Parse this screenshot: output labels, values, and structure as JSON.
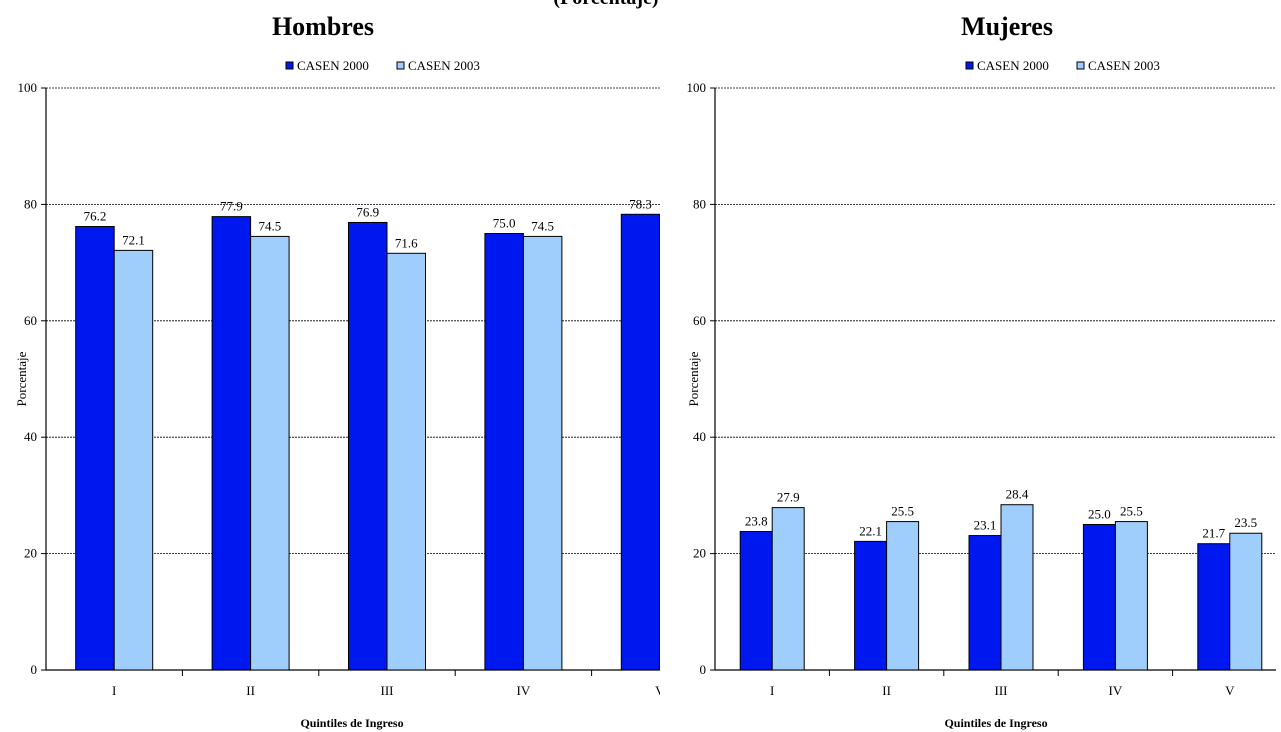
{
  "top_fragment": "(Porcentaje)",
  "chart_data": [
    {
      "type": "bar",
      "title": "Hombres",
      "xlabel": "Quintiles de Ingreso",
      "ylabel": "Porcentaje",
      "ylim": [
        0,
        100
      ],
      "yticks": [
        0,
        20,
        40,
        60,
        80,
        100
      ],
      "categories": [
        "I",
        "II",
        "III",
        "IV",
        "V"
      ],
      "series": [
        {
          "name": "CASEN 2000",
          "values": [
            76.2,
            77.9,
            76.9,
            75.0,
            78.3
          ],
          "labels": [
            "76.2",
            "77.9",
            "76.9",
            "75.0",
            "78.3"
          ],
          "color": "#0018f0"
        },
        {
          "name": "CASEN 2003",
          "values": [
            72.1,
            74.5,
            71.6,
            74.5,
            null
          ],
          "labels": [
            "72.1",
            "74.5",
            "71.6",
            "74.5",
            ""
          ],
          "color": "#9fcdfc"
        }
      ],
      "grid": true,
      "legend": "top-center",
      "cropped_right": true
    },
    {
      "type": "bar",
      "title": "Mujeres",
      "xlabel": "Quintiles de Ingreso",
      "ylabel": "Porcentaje",
      "ylim": [
        0,
        100
      ],
      "yticks": [
        0,
        20,
        40,
        60,
        80,
        100
      ],
      "categories": [
        "I",
        "II",
        "III",
        "IV",
        "V"
      ],
      "series": [
        {
          "name": "CASEN 2000",
          "values": [
            23.8,
            22.1,
            23.1,
            25.0,
            21.7
          ],
          "labels": [
            "23.8",
            "22.1",
            "23.1",
            "25.0",
            "21.7"
          ],
          "color": "#0018f0"
        },
        {
          "name": "CASEN 2003",
          "values": [
            27.9,
            25.5,
            28.4,
            25.5,
            23.5
          ],
          "labels": [
            "27.9",
            "25.5",
            "28.4",
            "25.5",
            "23.5"
          ],
          "color": "#9fcdfc"
        }
      ],
      "grid": true,
      "legend": "top-center"
    }
  ]
}
